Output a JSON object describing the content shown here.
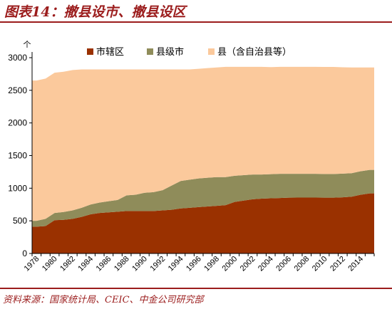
{
  "figure_title": "图表14：撤县设市、撤县设区",
  "source_note": "资料来源：国家统计局、CEIC、中金公司研究部",
  "chart_data": {
    "type": "area",
    "stacked": true,
    "title": "",
    "xlabel": "",
    "ylabel": "个",
    "ylim": [
      0,
      3000
    ],
    "yticks": [
      0,
      500,
      1000,
      1500,
      2000,
      2500,
      3000
    ],
    "xtick_labels": [
      "1978",
      "1980",
      "1982",
      "1984",
      "1986",
      "1988",
      "1990",
      "1992",
      "1994",
      "1996",
      "1998",
      "2000",
      "2002",
      "2004",
      "2006",
      "2008",
      "2010",
      "2012",
      "2014"
    ],
    "grid": false,
    "legend_position": "top",
    "x": [
      1978,
      1979,
      1980,
      1981,
      1982,
      1983,
      1984,
      1985,
      1986,
      1987,
      1988,
      1989,
      1990,
      1991,
      1992,
      1993,
      1994,
      1995,
      1996,
      1997,
      1998,
      1999,
      2000,
      2001,
      2002,
      2003,
      2004,
      2005,
      2006,
      2007,
      2008,
      2009,
      2010,
      2011,
      2012,
      2013,
      2014,
      2015
    ],
    "series": [
      {
        "name": "市辖区",
        "color": "#9a3100",
        "values": [
          410,
          420,
          510,
          515,
          530,
          560,
          600,
          620,
          630,
          640,
          650,
          650,
          650,
          650,
          660,
          670,
          690,
          700,
          710,
          720,
          730,
          740,
          790,
          810,
          830,
          840,
          845,
          850,
          855,
          856,
          856,
          856,
          855,
          855,
          860,
          870,
          900,
          920
        ]
      },
      {
        "name": "县级市",
        "color": "#8f8c5a",
        "values": [
          90,
          110,
          110,
          120,
          130,
          140,
          150,
          160,
          170,
          180,
          240,
          250,
          280,
          290,
          310,
          370,
          420,
          430,
          440,
          440,
          440,
          430,
          400,
          390,
          380,
          370,
          370,
          370,
          365,
          364,
          364,
          364,
          363,
          363,
          363,
          360,
          360,
          360
        ]
      },
      {
        "name": "县（含自治县等）",
        "color": "#fbc99c",
        "values": [
          2150,
          2150,
          2150,
          2150,
          2150,
          2120,
          2070,
          2040,
          2020,
          2000,
          1930,
          1920,
          1890,
          1880,
          1850,
          1780,
          1710,
          1690,
          1680,
          1680,
          1680,
          1690,
          1670,
          1660,
          1650,
          1650,
          1640,
          1640,
          1640,
          1640,
          1640,
          1640,
          1640,
          1640,
          1630,
          1620,
          1590,
          1570
        ]
      }
    ]
  }
}
